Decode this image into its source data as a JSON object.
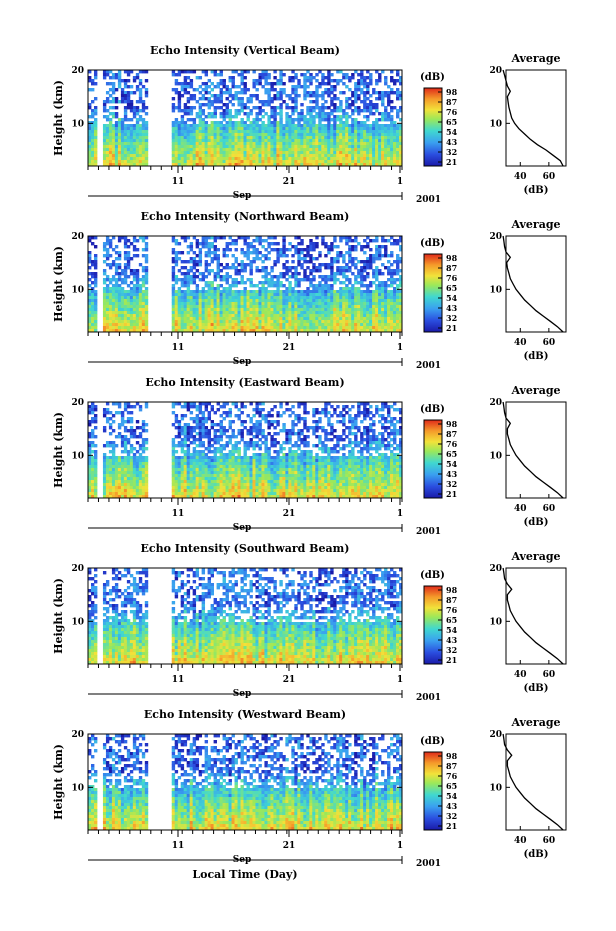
{
  "figure": {
    "xlabel": "Local Time (Day)",
    "month_label": "Sep",
    "year_label": "2001"
  },
  "chart_data": [
    {
      "type": "heatmap",
      "title": "Echo Intensity (Vertical Beam)",
      "ylabel": "Height (km)",
      "x_ticklabels": [
        "11",
        "21",
        "1"
      ],
      "y_ticklabels": [
        "20",
        "10"
      ],
      "ylim": [
        2,
        20
      ],
      "colorbar": {
        "unit": "(dB)",
        "ticks": [
          "98",
          "87",
          "76",
          "65",
          "54",
          "43",
          "32",
          "21"
        ]
      },
      "avg_profile": {
        "title": "Average",
        "xlabel": "(dB)",
        "x_ticklabels": [
          "40",
          "60"
        ],
        "y_ticklabels": [
          "20",
          "10"
        ],
        "xlim": [
          30,
          72
        ],
        "ylim": [
          2,
          20
        ],
        "heights": [
          2,
          3,
          4,
          5,
          6,
          7,
          8,
          9,
          10,
          11,
          12,
          13,
          14,
          15,
          16,
          17,
          18,
          19,
          20
        ],
        "values": [
          70,
          68,
          63,
          58,
          52,
          47,
          43,
          39,
          36,
          34,
          33,
          32,
          31.5,
          31,
          33,
          31,
          30,
          29,
          28
        ]
      }
    },
    {
      "type": "heatmap",
      "title": "Echo Intensity (Northward Beam)",
      "ylabel": "Height (km)",
      "x_ticklabels": [
        "11",
        "21",
        "1"
      ],
      "y_ticklabels": [
        "20",
        "10"
      ],
      "ylim": [
        2,
        20
      ],
      "colorbar": {
        "unit": "(dB)",
        "ticks": [
          "98",
          "87",
          "76",
          "65",
          "54",
          "43",
          "32",
          "21"
        ]
      },
      "avg_profile": {
        "title": "Average",
        "xlabel": "(dB)",
        "x_ticklabels": [
          "40",
          "60"
        ],
        "y_ticklabels": [
          "20",
          "10"
        ],
        "xlim": [
          30,
          72
        ],
        "ylim": [
          2,
          20
        ],
        "heights": [
          2,
          3,
          4,
          5,
          6,
          7,
          8,
          9,
          10,
          11,
          12,
          13,
          14,
          15,
          16,
          17,
          18,
          19,
          20
        ],
        "values": [
          70,
          66,
          61,
          56,
          51,
          47,
          43,
          40,
          37,
          35,
          33,
          32,
          31,
          30.5,
          33,
          30,
          29,
          28.5,
          28
        ]
      }
    },
    {
      "type": "heatmap",
      "title": "Echo Intensity (Eastward Beam)",
      "ylabel": "Height (km)",
      "x_ticklabels": [
        "11",
        "21",
        "1"
      ],
      "y_ticklabels": [
        "20",
        "10"
      ],
      "ylim": [
        2,
        20
      ],
      "colorbar": {
        "unit": "(dB)",
        "ticks": [
          "98",
          "87",
          "76",
          "65",
          "54",
          "43",
          "32",
          "21"
        ]
      },
      "avg_profile": {
        "title": "Average",
        "xlabel": "(dB)",
        "x_ticklabels": [
          "40",
          "60"
        ],
        "y_ticklabels": [
          "20",
          "10"
        ],
        "xlim": [
          30,
          72
        ],
        "ylim": [
          2,
          20
        ],
        "heights": [
          2,
          3,
          4,
          5,
          6,
          7,
          8,
          9,
          10,
          11,
          12,
          13,
          14,
          15,
          16,
          17,
          18,
          19,
          20
        ],
        "values": [
          70,
          66,
          61,
          56,
          51,
          47,
          43,
          40,
          37,
          35,
          33,
          32,
          31,
          31,
          33,
          30,
          29,
          28.5,
          28
        ]
      }
    },
    {
      "type": "heatmap",
      "title": "Echo Intensity (Southward Beam)",
      "ylabel": "Height (km)",
      "x_ticklabels": [
        "11",
        "21",
        "1"
      ],
      "y_ticklabels": [
        "20",
        "10"
      ],
      "ylim": [
        2,
        20
      ],
      "colorbar": {
        "unit": "(dB)",
        "ticks": [
          "98",
          "87",
          "76",
          "65",
          "54",
          "43",
          "32",
          "21"
        ]
      },
      "avg_profile": {
        "title": "Average",
        "xlabel": "(dB)",
        "x_ticklabels": [
          "40",
          "60"
        ],
        "y_ticklabels": [
          "20",
          "10"
        ],
        "xlim": [
          30,
          72
        ],
        "ylim": [
          2,
          20
        ],
        "heights": [
          2,
          3,
          4,
          5,
          6,
          7,
          8,
          9,
          10,
          11,
          12,
          13,
          14,
          15,
          16,
          17,
          18,
          19,
          20
        ],
        "values": [
          70,
          66,
          61,
          56,
          51,
          47,
          43,
          40,
          37,
          35,
          33,
          32,
          31,
          31,
          34,
          31,
          29,
          28.5,
          28
        ]
      }
    },
    {
      "type": "heatmap",
      "title": "Echo Intensity (Westward Beam)",
      "ylabel": "Height (km)",
      "x_ticklabels": [
        "11",
        "21",
        "1"
      ],
      "y_ticklabels": [
        "20",
        "10"
      ],
      "ylim": [
        2,
        20
      ],
      "colorbar": {
        "unit": "(dB)",
        "ticks": [
          "98",
          "87",
          "76",
          "65",
          "54",
          "43",
          "32",
          "21"
        ]
      },
      "avg_profile": {
        "title": "Average",
        "xlabel": "(dB)",
        "x_ticklabels": [
          "40",
          "60"
        ],
        "y_ticklabels": [
          "20",
          "10"
        ],
        "xlim": [
          30,
          72
        ],
        "ylim": [
          2,
          20
        ],
        "heights": [
          2,
          3,
          4,
          5,
          6,
          7,
          8,
          9,
          10,
          11,
          12,
          13,
          14,
          15,
          16,
          17,
          18,
          19,
          20
        ],
        "values": [
          70,
          66,
          61,
          56,
          51,
          47,
          43,
          40,
          37,
          35,
          33,
          32,
          31,
          31,
          34,
          31,
          29,
          28.5,
          28
        ]
      }
    }
  ]
}
